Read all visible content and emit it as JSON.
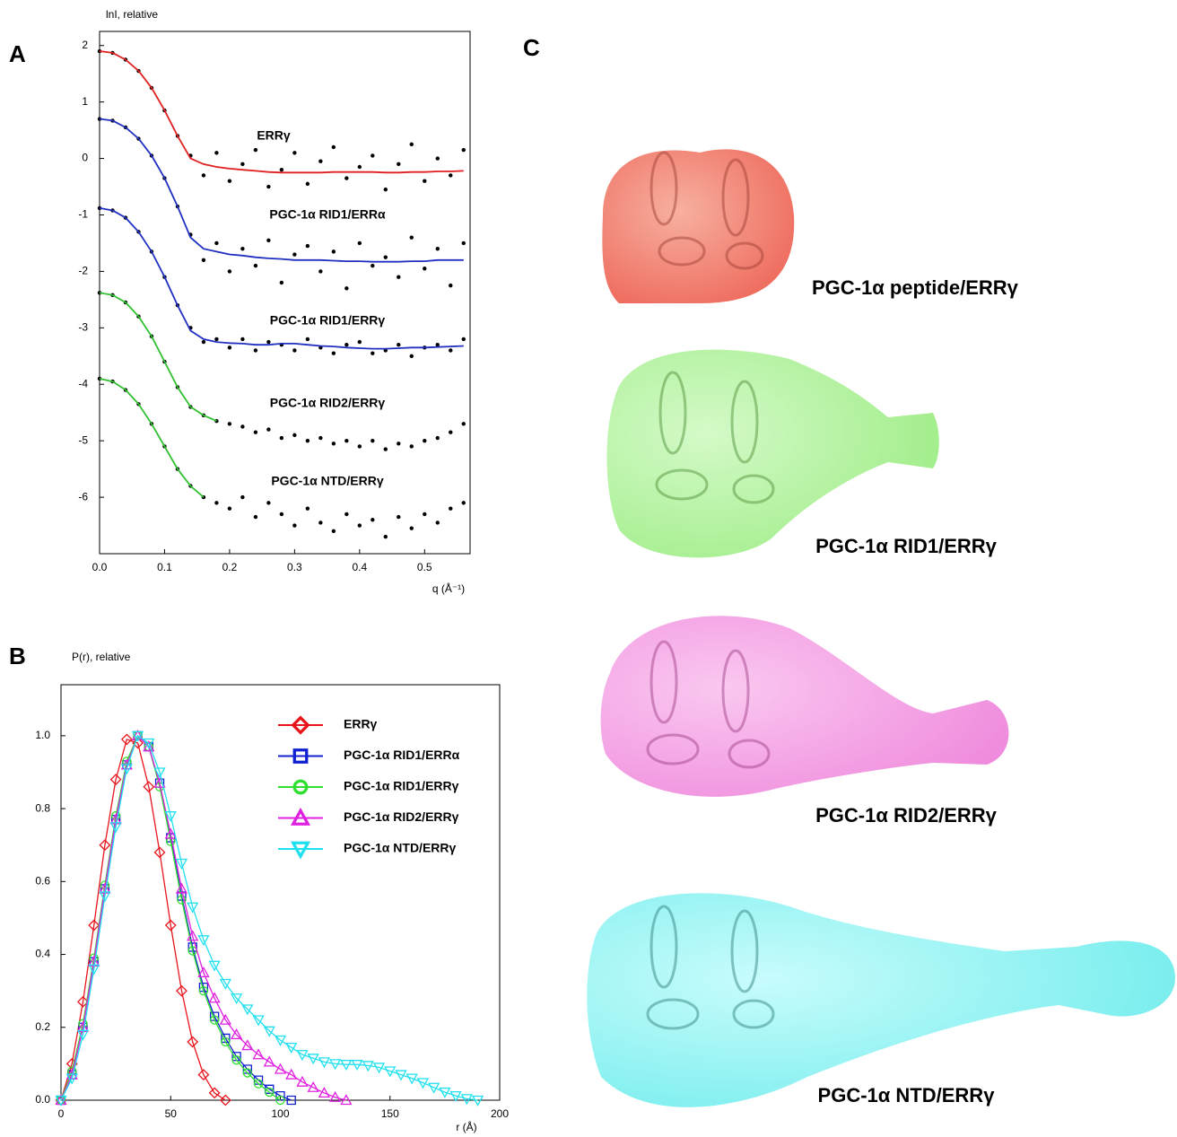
{
  "panel_labels": [
    "A",
    "B",
    "C"
  ],
  "models": [
    "PGC-1α peptide/ERRγ",
    "PGC-1α RID1/ERRγ",
    "PGC-1α RID2/ERRγ",
    "PGC-1α NTD/ERRγ"
  ],
  "chart_data": [
    {
      "type": "scatter",
      "y_label": "lnI, relative",
      "x_label": "q (Å⁻¹)",
      "xlim": [
        0,
        0.57
      ],
      "ylim": [
        -7,
        2.25
      ],
      "xticks": [
        {
          "value": 0,
          "label": "0.0"
        },
        0.1,
        0.2,
        0.3,
        0.4,
        0.5
      ],
      "yticks": [
        -6,
        -5,
        -4,
        -3,
        -2,
        -1,
        0,
        1,
        2
      ],
      "x": [
        0,
        0.02,
        0.04,
        0.06,
        0.08,
        0.1,
        0.12,
        0.14,
        0.16,
        0.18,
        0.2,
        0.22,
        0.24,
        0.26,
        0.28,
        0.3,
        0.32,
        0.34,
        0.36,
        0.38,
        0.4,
        0.42,
        0.44,
        0.46,
        0.48,
        0.5,
        0.52,
        0.54,
        0.56
      ],
      "point_color": "#000000",
      "series": [
        {
          "name": "ERRγ",
          "color": "#e02020",
          "values": [
            1.9,
            1.87,
            1.75,
            1.55,
            1.25,
            0.85,
            0.4,
            0.0,
            -0.1,
            -0.15,
            -0.18,
            -0.2,
            -0.22,
            -0.24,
            -0.25,
            -0.25,
            -0.25,
            -0.25,
            -0.24,
            -0.24,
            -0.24,
            -0.24,
            -0.25,
            -0.25,
            -0.24,
            -0.24,
            -0.23,
            -0.23,
            -0.22
          ],
          "points": [
            1.9,
            1.87,
            1.75,
            1.55,
            1.25,
            0.85,
            0.4,
            0.05,
            -0.3,
            0.1,
            -0.4,
            -0.1,
            0.15,
            -0.5,
            -0.2,
            0.1,
            -0.45,
            -0.05,
            0.2,
            -0.35,
            -0.15,
            0.05,
            -0.55,
            -0.1,
            0.25,
            -0.4,
            0.0,
            -0.3,
            0.15
          ]
        },
        {
          "name": "PGC-1α RID1/ERRα",
          "color": "#2030c0",
          "values": [
            0.7,
            0.67,
            0.55,
            0.35,
            0.05,
            -0.35,
            -0.85,
            -1.4,
            -1.6,
            -1.65,
            -1.7,
            -1.72,
            -1.75,
            -1.77,
            -1.78,
            -1.8,
            -1.8,
            -1.8,
            -1.81,
            -1.82,
            -1.82,
            -1.83,
            -1.83,
            -1.83,
            -1.82,
            -1.82,
            -1.8,
            -1.8,
            -1.8
          ],
          "points": [
            0.7,
            0.67,
            0.55,
            0.35,
            0.05,
            -0.35,
            -0.85,
            -1.35,
            -1.8,
            -1.5,
            -2.0,
            -1.6,
            -1.9,
            -1.45,
            -2.2,
            -1.7,
            -1.55,
            -2.0,
            -1.65,
            -2.3,
            -1.5,
            -1.9,
            -1.75,
            -2.1,
            -1.4,
            -1.95,
            -1.6,
            -2.25,
            -1.5
          ]
        },
        {
          "name": "PGC-1α RID1/ERRγ",
          "color": "#2030c0",
          "values": [
            -0.88,
            -0.92,
            -1.05,
            -1.3,
            -1.65,
            -2.1,
            -2.6,
            -3.05,
            -3.2,
            -3.25,
            -3.27,
            -3.28,
            -3.3,
            -3.3,
            -3.28,
            -3.28,
            -3.3,
            -3.32,
            -3.33,
            -3.35,
            -3.36,
            -3.37,
            -3.37,
            -3.36,
            -3.35,
            -3.35,
            -3.34,
            -3.33,
            -3.32
          ],
          "points": [
            -0.88,
            -0.92,
            -1.05,
            -1.3,
            -1.65,
            -2.1,
            -2.6,
            -3.0,
            -3.25,
            -3.2,
            -3.35,
            -3.2,
            -3.4,
            -3.25,
            -3.3,
            -3.4,
            -3.2,
            -3.35,
            -3.45,
            -3.3,
            -3.25,
            -3.45,
            -3.4,
            -3.3,
            -3.5,
            -3.35,
            -3.3,
            -3.4,
            -3.2
          ]
        },
        {
          "name": "PGC-1α RID2/ERRγ",
          "color": "#30c030",
          "values": [
            -2.38,
            -2.42,
            -2.55,
            -2.8,
            -3.15,
            -3.6,
            -4.05,
            -4.4,
            -4.55,
            -4.65,
            null,
            null,
            null,
            null,
            null,
            null,
            null,
            null,
            null,
            null,
            null,
            null,
            null,
            null,
            null,
            null,
            null,
            null,
            null
          ],
          "points": [
            -2.38,
            -2.42,
            -2.55,
            -2.8,
            -3.15,
            -3.6,
            -4.05,
            -4.4,
            -4.55,
            -4.65,
            -4.7,
            -4.75,
            -4.85,
            -4.8,
            -4.95,
            -4.9,
            -5.0,
            -4.95,
            -5.05,
            -5.0,
            -5.1,
            -5.0,
            -5.15,
            -5.05,
            -5.1,
            -5.0,
            -4.95,
            -4.85,
            -4.7
          ]
        },
        {
          "name": "PGC-1α NTD/ERRγ",
          "color": "#30c030",
          "values": [
            -3.9,
            -3.95,
            -4.1,
            -4.35,
            -4.7,
            -5.1,
            -5.5,
            -5.8,
            -6.0,
            null,
            null,
            null,
            null,
            null,
            null,
            null,
            null,
            null,
            null,
            null,
            null,
            null,
            null,
            null,
            null,
            null,
            null,
            null,
            null
          ],
          "points": [
            -3.9,
            -3.95,
            -4.1,
            -4.35,
            -4.7,
            -5.1,
            -5.5,
            -5.8,
            -6.0,
            -6.1,
            -6.2,
            -6.0,
            -6.35,
            -6.1,
            -6.3,
            -6.5,
            -6.2,
            -6.45,
            -6.6,
            -6.3,
            -6.5,
            -6.4,
            -6.7,
            -6.35,
            -6.55,
            -6.3,
            -6.45,
            -6.2,
            -6.1
          ]
        }
      ]
    },
    {
      "type": "line",
      "y_label": "P(r), relative",
      "x_label": "r (Å)",
      "xlim": [
        0,
        200
      ],
      "ylim": [
        0,
        1.14
      ],
      "xticks": [
        0,
        50,
        100,
        150,
        200
      ],
      "yticks": [
        {
          "value": 0,
          "label": "0.0"
        },
        0.2,
        0.4,
        0.6,
        0.8,
        {
          "value": 1,
          "label": "1.0"
        }
      ],
      "x": [
        0,
        5,
        10,
        15,
        20,
        25,
        30,
        35,
        40,
        45,
        50,
        55,
        60,
        65,
        70,
        75,
        80,
        85,
        90,
        95,
        100,
        105,
        110,
        115,
        120,
        125,
        130,
        135,
        140,
        145,
        150,
        155,
        160,
        165,
        170,
        175,
        180,
        185,
        190
      ],
      "series": [
        {
          "name": "ERRγ",
          "color": "#e8141c",
          "marker": "diamond",
          "values": [
            0,
            0.1,
            0.27,
            0.48,
            0.7,
            0.88,
            0.99,
            0.98,
            0.86,
            0.68,
            0.48,
            0.3,
            0.16,
            0.07,
            0.02,
            0.0,
            null,
            null,
            null,
            null,
            null,
            null,
            null,
            null,
            null,
            null,
            null,
            null,
            null,
            null,
            null,
            null,
            null,
            null,
            null,
            null,
            null,
            null,
            null
          ]
        },
        {
          "name": "PGC-1α RID1/ERRα",
          "color": "#1020d0",
          "marker": "square",
          "values": [
            0,
            0.07,
            0.2,
            0.38,
            0.58,
            0.77,
            0.92,
            1.0,
            0.97,
            0.87,
            0.72,
            0.56,
            0.42,
            0.31,
            0.23,
            0.17,
            0.12,
            0.085,
            0.055,
            0.03,
            0.012,
            0.0,
            null,
            null,
            null,
            null,
            null,
            null,
            null,
            null,
            null,
            null,
            null,
            null,
            null,
            null,
            null,
            null,
            null
          ]
        },
        {
          "name": "PGC-1α RID1/ERRγ",
          "color": "#30e030",
          "marker": "circle",
          "values": [
            0,
            0.08,
            0.21,
            0.39,
            0.59,
            0.78,
            0.93,
            1.0,
            0.97,
            0.86,
            0.71,
            0.55,
            0.41,
            0.3,
            0.22,
            0.16,
            0.11,
            0.075,
            0.045,
            0.022,
            0.0,
            null,
            null,
            null,
            null,
            null,
            null,
            null,
            null,
            null,
            null,
            null,
            null,
            null,
            null,
            null,
            null,
            null,
            null
          ]
        },
        {
          "name": "PGC-1α RID2/ERRγ",
          "color": "#e020e0",
          "marker": "triangle-up",
          "values": [
            0,
            0.07,
            0.2,
            0.38,
            0.58,
            0.77,
            0.92,
            1.0,
            0.97,
            0.87,
            0.73,
            0.58,
            0.45,
            0.35,
            0.28,
            0.22,
            0.18,
            0.15,
            0.125,
            0.105,
            0.085,
            0.07,
            0.05,
            0.035,
            0.02,
            0.008,
            0.0,
            null,
            null,
            null,
            null,
            null,
            null,
            null,
            null,
            null,
            null,
            null,
            null
          ]
        },
        {
          "name": "PGC-1α NTD/ERRγ",
          "color": "#20e0f0",
          "marker": "triangle-down",
          "values": [
            0,
            0.06,
            0.18,
            0.36,
            0.56,
            0.75,
            0.91,
            1.0,
            0.98,
            0.9,
            0.78,
            0.65,
            0.53,
            0.44,
            0.37,
            0.32,
            0.28,
            0.25,
            0.22,
            0.19,
            0.165,
            0.145,
            0.125,
            0.115,
            0.105,
            0.1,
            0.098,
            0.098,
            0.095,
            0.09,
            0.08,
            0.07,
            0.06,
            0.048,
            0.035,
            0.022,
            0.012,
            0.004,
            0.0
          ]
        }
      ]
    }
  ]
}
